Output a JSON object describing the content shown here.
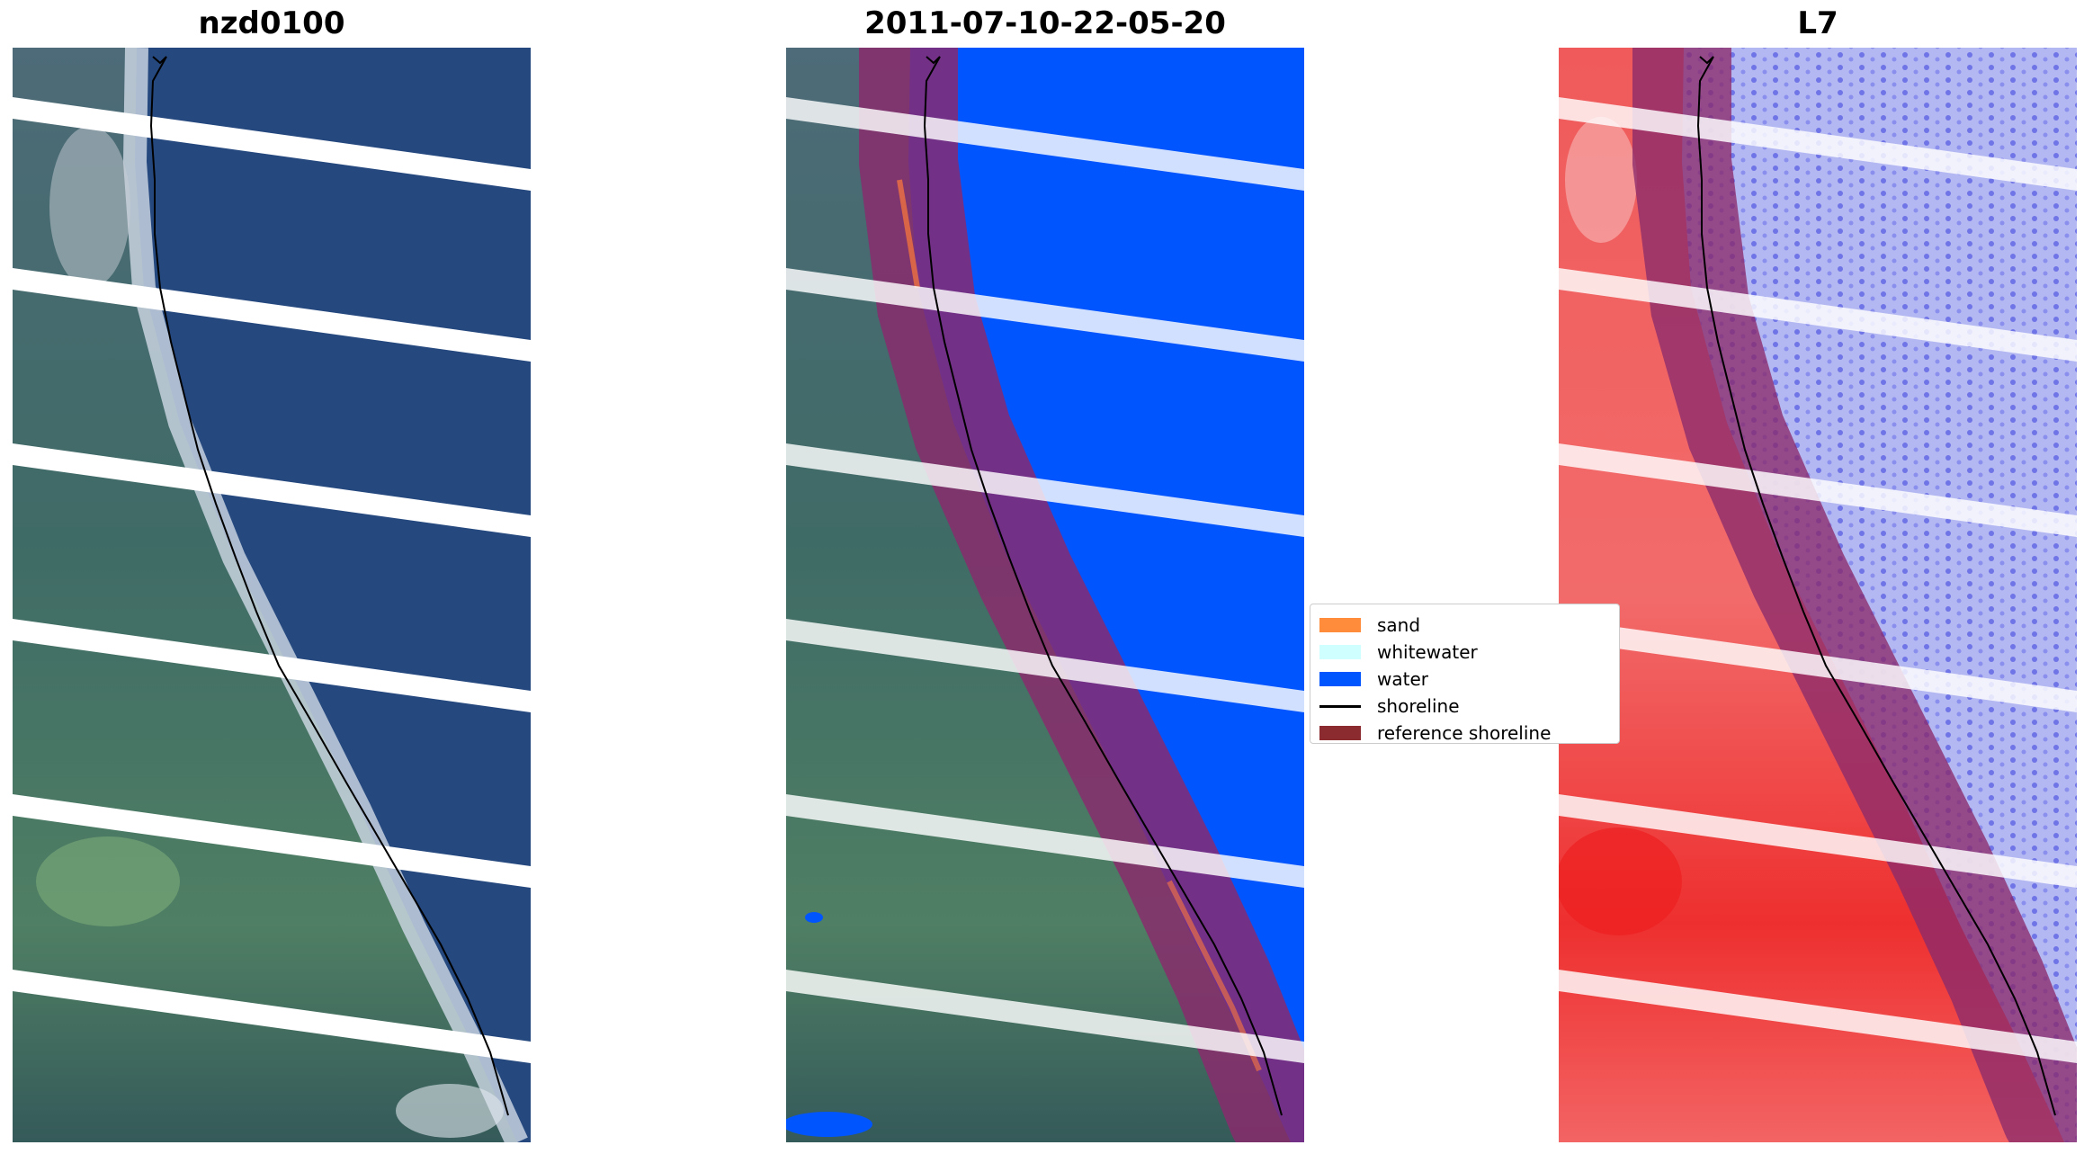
{
  "panels": {
    "rgb": {
      "title": "nzd0100"
    },
    "classified": {
      "title": "2011-07-10-22-05-20"
    },
    "index": {
      "title": "L7"
    }
  },
  "legend": {
    "items": [
      {
        "label": "sand",
        "color": "#ff8c3a",
        "kind": "patch"
      },
      {
        "label": "whitewater",
        "color": "#cfffff",
        "kind": "patch"
      },
      {
        "label": "water",
        "color": "#0055ff",
        "kind": "patch"
      },
      {
        "label": "shoreline",
        "color": "#000000",
        "kind": "line"
      },
      {
        "label": "reference shoreline",
        "color": "#8b2a2f",
        "kind": "patch"
      }
    ]
  }
}
